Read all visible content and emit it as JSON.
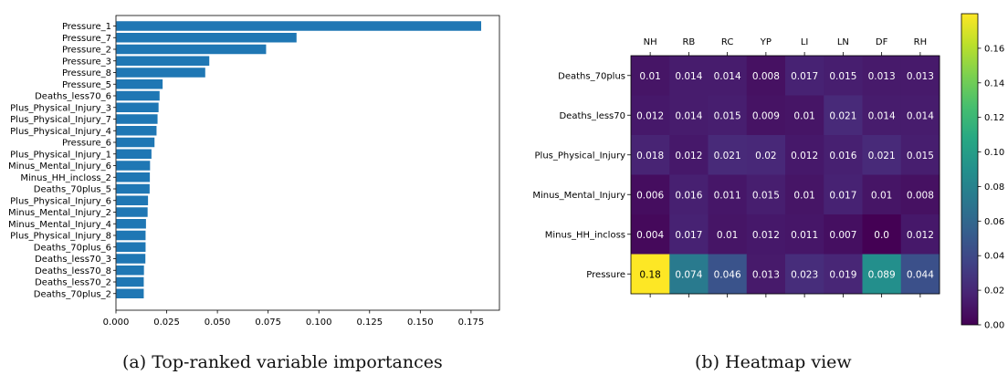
{
  "chart_data": [
    {
      "type": "bar",
      "orientation": "horizontal",
      "categories": [
        "Pressure_1",
        "Pressure_7",
        "Pressure_2",
        "Pressure_3",
        "Pressure_8",
        "Pressure_5",
        "Deaths_less70_6",
        "Plus_Physical_Injury_3",
        "Plus_Physical_Injury_7",
        "Plus_Physical_Injury_4",
        "Pressure_6",
        "Plus_Physical_Injury_1",
        "Minus_Mental_Injury_6",
        "Minus_HH_incloss_2",
        "Deaths_70plus_5",
        "Plus_Physical_Injury_6",
        "Minus_Mental_Injury_2",
        "Minus_Mental_Injury_4",
        "Plus_Physical_Injury_8",
        "Deaths_70plus_6",
        "Deaths_less70_3",
        "Deaths_less70_8",
        "Deaths_less70_2",
        "Deaths_70plus_2"
      ],
      "values": [
        0.18,
        0.089,
        0.074,
        0.046,
        0.044,
        0.023,
        0.0215,
        0.021,
        0.0205,
        0.02,
        0.019,
        0.0175,
        0.0168,
        0.0167,
        0.0166,
        0.0158,
        0.0156,
        0.0148,
        0.0146,
        0.0146,
        0.0145,
        0.0138,
        0.0137,
        0.0137
      ],
      "xlim": [
        0.0,
        0.189
      ],
      "xticks": [
        "0.000",
        "0.025",
        "0.050",
        "0.075",
        "0.100",
        "0.125",
        "0.150",
        "0.175"
      ],
      "color": "#1f77b4",
      "title": "",
      "xlabel": "",
      "ylabel": ""
    },
    {
      "type": "heatmap",
      "columns": [
        "NH",
        "RB",
        "RC",
        "YP",
        "LI",
        "LN",
        "DF",
        "RH"
      ],
      "rows": [
        "Deaths_70plus",
        "Deaths_less70",
        "Plus_Physical_Injury",
        "Minus_Mental_Injury",
        "Minus_HH_incloss",
        "Pressure"
      ],
      "values": [
        [
          0.01,
          0.014,
          0.014,
          0.008,
          0.017,
          0.015,
          0.013,
          0.013
        ],
        [
          0.012,
          0.014,
          0.015,
          0.009,
          0.01,
          0.021,
          0.014,
          0.014
        ],
        [
          0.018,
          0.012,
          0.021,
          0.02,
          0.012,
          0.016,
          0.021,
          0.015
        ],
        [
          0.006,
          0.016,
          0.011,
          0.015,
          0.01,
          0.017,
          0.01,
          0.008
        ],
        [
          0.004,
          0.017,
          0.01,
          0.012,
          0.011,
          0.007,
          0.0,
          0.012
        ],
        [
          0.18,
          0.074,
          0.046,
          0.013,
          0.023,
          0.019,
          0.089,
          0.044
        ]
      ],
      "labels": [
        [
          "0.01",
          "0.014",
          "0.014",
          "0.008",
          "0.017",
          "0.015",
          "0.013",
          "0.013"
        ],
        [
          "0.012",
          "0.014",
          "0.015",
          "0.009",
          "0.01",
          "0.021",
          "0.014",
          "0.014"
        ],
        [
          "0.018",
          "0.012",
          "0.021",
          "0.02",
          "0.012",
          "0.016",
          "0.021",
          "0.015"
        ],
        [
          "0.006",
          "0.016",
          "0.011",
          "0.015",
          "0.01",
          "0.017",
          "0.01",
          "0.008"
        ],
        [
          "0.004",
          "0.017",
          "0.01",
          "0.012",
          "0.011",
          "0.007",
          "0.0",
          "0.012"
        ],
        [
          "0.18",
          "0.074",
          "0.046",
          "0.013",
          "0.023",
          "0.019",
          "0.089",
          "0.044"
        ]
      ],
      "colormap": "viridis",
      "vmin": 0.0,
      "vmax": 0.18,
      "colorbar_ticks": [
        "0.00",
        "0.02",
        "0.04",
        "0.06",
        "0.08",
        "0.10",
        "0.12",
        "0.14",
        "0.16"
      ],
      "colorbar_values": [
        0.0,
        0.02,
        0.04,
        0.06,
        0.08,
        0.1,
        0.12,
        0.14,
        0.16
      ]
    }
  ],
  "captions": {
    "a": "(a) Top-ranked variable importances",
    "b": "(b) Heatmap view"
  }
}
